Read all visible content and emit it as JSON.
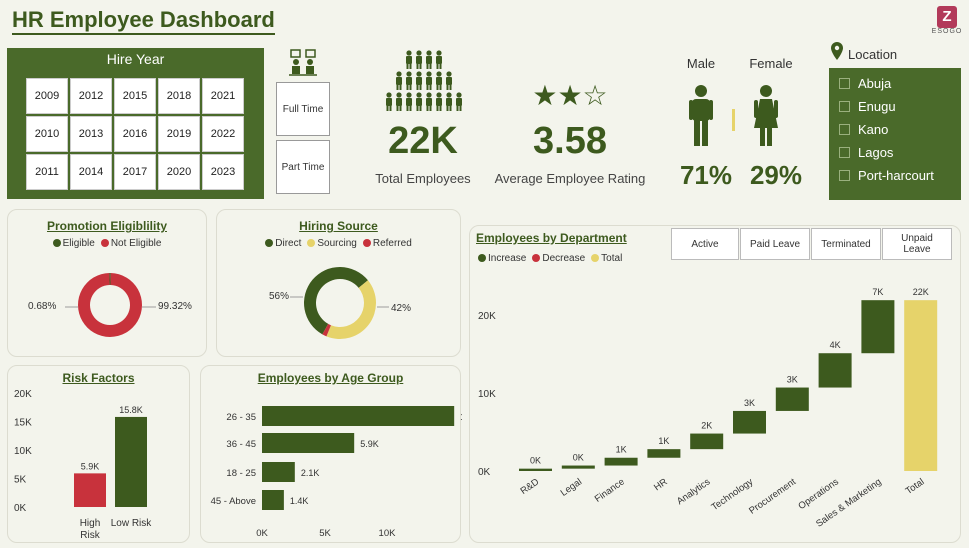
{
  "header": {
    "title": "HR Employee Dashboard",
    "logo_letter": "Z",
    "logo_text": "ESOGO"
  },
  "hire_year": {
    "title": "Hire Year",
    "years": [
      "2009",
      "2012",
      "2015",
      "2018",
      "2021",
      "2010",
      "2013",
      "2016",
      "2019",
      "2022",
      "2011",
      "2014",
      "2017",
      "2020",
      "2023"
    ]
  },
  "employment_type": {
    "full_time": "Full Time",
    "part_time": "Part Time"
  },
  "kpis": {
    "total_employees": {
      "value": "22K",
      "label": "Total Employees"
    },
    "avg_rating": {
      "value": "3.58",
      "label": "Average Employee Rating",
      "stars": "★★☆"
    }
  },
  "gender": {
    "male_label": "Male",
    "female_label": "Female",
    "male_pct": "71%",
    "female_pct": "29%",
    "male_share": 0.71
  },
  "location": {
    "title": "Location",
    "items": [
      "Abuja",
      "Enugu",
      "Kano",
      "Lagos",
      "Port-harcourt"
    ]
  },
  "promotion": {
    "title": "Promotion Eligiblility",
    "legend": [
      "Eligible",
      "Not Eligible"
    ],
    "labels": {
      "eligible": "0.68%",
      "not_eligible": "99.32%"
    }
  },
  "hiring_source": {
    "title": "Hiring Source",
    "legend": [
      "Direct",
      "Sourcing",
      "Referred"
    ],
    "labels": {
      "direct": "56%",
      "sourcing": "42%"
    }
  },
  "risk": {
    "title": "Risk Factors"
  },
  "age": {
    "title": "Employees by Age Group"
  },
  "department": {
    "title": "Employees by Department",
    "legend": [
      "Increase",
      "Decrease",
      "Total"
    ],
    "status_buttons": [
      "Active",
      "Paid Leave",
      "Terminated",
      "Unpaid Leave"
    ]
  },
  "colors": {
    "dark_green": "#3d5a1e",
    "panel_green": "#4a6a2a",
    "red": "#c8323c",
    "yellow": "#e6d36a"
  },
  "chart_data": [
    {
      "type": "pie",
      "title": "Promotion Eligiblility",
      "categories": [
        "Eligible",
        "Not Eligible"
      ],
      "values": [
        0.68,
        99.32
      ]
    },
    {
      "type": "pie",
      "title": "Hiring Source",
      "categories": [
        "Direct",
        "Sourcing",
        "Referred"
      ],
      "values": [
        56,
        42,
        2
      ]
    },
    {
      "type": "bar",
      "title": "Risk Factors",
      "categories": [
        "High Risk",
        "Low Risk"
      ],
      "values": [
        5.9,
        15.8
      ],
      "value_labels": [
        "5.9K",
        "15.8K"
      ],
      "yticks": [
        "20K",
        "15K",
        "10K",
        "5K",
        "0K"
      ],
      "ylim": [
        0,
        20
      ]
    },
    {
      "type": "bar",
      "orientation": "horizontal",
      "title": "Employees by Age Group",
      "categories": [
        "26 - 35",
        "36 - 45",
        "18 - 25",
        "45 - Above"
      ],
      "values": [
        12.3,
        5.9,
        2.1,
        1.4
      ],
      "value_labels": [
        "12.3K",
        "5.9K",
        "2.1K",
        "1.4K"
      ],
      "xticks": [
        "0K",
        "5K",
        "10K"
      ],
      "xlim": [
        0,
        12.8
      ]
    },
    {
      "type": "waterfall",
      "title": "Employees by Department",
      "categories": [
        "R&D",
        "Legal",
        "Finance",
        "HR",
        "Analytics",
        "Technology",
        "Procurement",
        "Operations",
        "Sales & Marketing",
        "Total"
      ],
      "values": [
        0.3,
        0.4,
        1.0,
        1.1,
        2.0,
        2.9,
        3.0,
        4.4,
        6.8,
        21.9
      ],
      "value_labels": [
        "0K",
        "0K",
        "1K",
        "1K",
        "2K",
        "3K",
        "3K",
        "4K",
        "7K",
        "22K"
      ],
      "yticks": [
        "20K",
        "10K",
        "0K"
      ],
      "ylim": [
        0,
        24
      ]
    }
  ]
}
